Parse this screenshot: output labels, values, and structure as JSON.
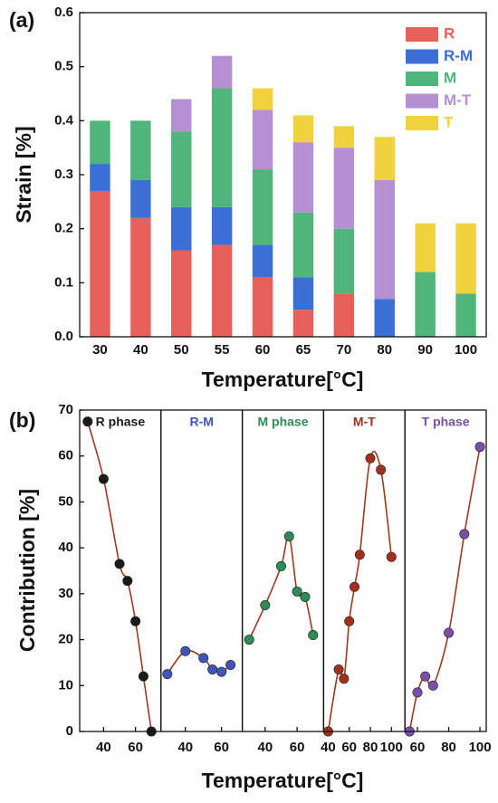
{
  "chart_data": [
    {
      "type": "bar",
      "stacked": true,
      "label": "(a)",
      "ylabel": "Strain [%]",
      "xlabel": "Temperature[°C]",
      "categories": [
        "30",
        "40",
        "50",
        "55",
        "60",
        "65",
        "70",
        "80",
        "90",
        "100"
      ],
      "series": [
        {
          "name": "R",
          "color": "#e8605a",
          "values": [
            0.27,
            0.22,
            0.16,
            0.17,
            0.11,
            0.05,
            0.08,
            0,
            0,
            0
          ]
        },
        {
          "name": "R-M",
          "color": "#3b6fd6",
          "values": [
            0.05,
            0.07,
            0.08,
            0.07,
            0.06,
            0.06,
            0,
            0.07,
            0,
            0
          ]
        },
        {
          "name": "M",
          "color": "#4fb57a",
          "values": [
            0.08,
            0.11,
            0.14,
            0.22,
            0.14,
            0.12,
            0.12,
            0,
            0.12,
            0.08
          ]
        },
        {
          "name": "M-T",
          "color": "#b48fd2",
          "values": [
            0,
            0,
            0.06,
            0.06,
            0.11,
            0.13,
            0.15,
            0.22,
            0,
            0
          ]
        },
        {
          "name": "T",
          "color": "#efd23c",
          "values": [
            0,
            0,
            0,
            0,
            0.04,
            0.05,
            0.04,
            0.08,
            0.09,
            0.13
          ]
        }
      ],
      "ylim": [
        0,
        0.6
      ],
      "yticks": [
        {
          "value": 0,
          "label": "0.0"
        },
        0.1,
        0.2,
        0.3,
        0.4,
        0.5,
        0.6
      ],
      "legend": "upper right"
    },
    {
      "type": "scatter",
      "label": "(b)",
      "ylabel": "Contribution  [%]",
      "xlabel": "Temperature[°C]",
      "ylim": [
        0,
        70
      ],
      "yticks": [
        0,
        10,
        20,
        30,
        40,
        50,
        60,
        70
      ],
      "curve_color": "#9a3a1e",
      "series": [
        {
          "name": "R phase",
          "color": "#1a1a1a",
          "x": [
            30,
            40,
            50,
            55,
            60,
            65,
            70
          ],
          "values": [
            67.5,
            55,
            36.5,
            32.8,
            24,
            12,
            0
          ],
          "xlim": [
            25,
            76
          ],
          "xticks": [
            40,
            60
          ]
        },
        {
          "name": "R-M",
          "color": "#3f55b8",
          "x": [
            30,
            40,
            50,
            55,
            60,
            65
          ],
          "values": [
            12.5,
            17.5,
            16,
            13.5,
            13,
            14.5
          ],
          "xlim": [
            26.5,
            71.5
          ],
          "xticks": [
            40,
            60
          ]
        },
        {
          "name": "M phase",
          "color": "#2e8b57",
          "x": [
            30,
            40,
            50,
            55,
            60,
            65,
            70
          ],
          "values": [
            20,
            27.5,
            36,
            42.5,
            30.5,
            29.3,
            21
          ],
          "xlim": [
            25.7,
            76.6
          ],
          "xticks": [
            40,
            60
          ]
        },
        {
          "name": "M-T",
          "color": "#a3301e",
          "x": [
            40,
            50,
            55,
            60,
            65,
            70,
            80,
            90,
            100
          ],
          "values": [
            0,
            13.5,
            11.5,
            24,
            31.5,
            38.5,
            59.5,
            57,
            38
          ],
          "xlim": [
            35.7,
            112.8
          ],
          "xticks": [
            40,
            60,
            80,
            100
          ]
        },
        {
          "name": "T phase",
          "color": "#7b4fa8",
          "x": [
            55,
            60,
            65,
            70,
            80,
            90,
            100
          ],
          "values": [
            0,
            8.5,
            12,
            10,
            21.5,
            43,
            62
          ],
          "xlim": [
            52,
            104
          ],
          "xticks": [
            60,
            80,
            100
          ]
        }
      ]
    }
  ]
}
